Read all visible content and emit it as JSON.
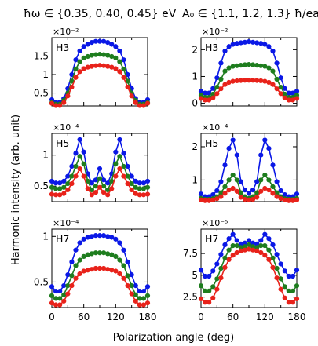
{
  "figure": {
    "column_titles": [
      "ħω ∈ {0.35, 0.40, 0.45} eV",
      "A₀ ∈ {1.1, 1.2, 1.3} ħ/ea"
    ],
    "xlabel": "Polarization angle (deg)",
    "ylabel": "Harmonic intensity (arb. unit)",
    "colors": {
      "blue": "#0a18e6",
      "green": "#1e7d1e",
      "red": "#e8221a"
    }
  },
  "chart_data": [
    {
      "type": "line",
      "panel": "H3",
      "column": 0,
      "row": 0,
      "scale_label": "×10⁻²",
      "x": [
        0,
        7.5,
        15,
        22.5,
        30,
        37.5,
        45,
        52.5,
        60,
        67.5,
        75,
        82.5,
        90,
        97.5,
        105,
        112.5,
        120,
        127.5,
        135,
        142.5,
        150,
        157.5,
        165,
        172.5,
        180
      ],
      "xlim": [
        0,
        180
      ],
      "xticks": [
        "0",
        "60",
        "120",
        "180"
      ],
      "ylim": [
        0.15,
        2.0
      ],
      "yticks": [
        0.5,
        1.0,
        1.5
      ],
      "ytick_labels": [
        "0.5",
        "1",
        "1.5"
      ],
      "series": [
        {
          "color": "#0a18e6",
          "values": [
            0.32,
            0.25,
            0.25,
            0.35,
            0.62,
            1.0,
            1.4,
            1.64,
            1.76,
            1.82,
            1.87,
            1.9,
            1.9,
            1.9,
            1.87,
            1.82,
            1.76,
            1.64,
            1.4,
            1.0,
            0.62,
            0.35,
            0.25,
            0.25,
            0.32
          ]
        },
        {
          "color": "#1e7d1e",
          "values": [
            0.24,
            0.2,
            0.2,
            0.3,
            0.5,
            0.82,
            1.15,
            1.35,
            1.45,
            1.49,
            1.52,
            1.54,
            1.55,
            1.54,
            1.52,
            1.49,
            1.45,
            1.35,
            1.15,
            0.82,
            0.5,
            0.3,
            0.2,
            0.2,
            0.24
          ]
        },
        {
          "color": "#e8221a",
          "values": [
            0.22,
            0.16,
            0.16,
            0.24,
            0.42,
            0.66,
            0.92,
            1.08,
            1.16,
            1.2,
            1.22,
            1.24,
            1.25,
            1.24,
            1.22,
            1.2,
            1.16,
            1.08,
            0.92,
            0.66,
            0.42,
            0.24,
            0.16,
            0.16,
            0.22
          ]
        }
      ]
    },
    {
      "type": "line",
      "panel": "H3",
      "column": 1,
      "row": 0,
      "scale_label": "×10⁻²",
      "x": [
        0,
        7.5,
        15,
        22.5,
        30,
        37.5,
        45,
        52.5,
        60,
        67.5,
        75,
        82.5,
        90,
        97.5,
        105,
        112.5,
        120,
        127.5,
        135,
        142.5,
        150,
        157.5,
        165,
        172.5,
        180
      ],
      "xlim": [
        0,
        180
      ],
      "xticks": [
        "0",
        "60",
        "120",
        "180"
      ],
      "ylim": [
        -0.1,
        2.45
      ],
      "yticks": [
        0,
        1,
        2
      ],
      "ytick_labels": [
        "0",
        "1",
        "2"
      ],
      "series": [
        {
          "color": "#0a18e6",
          "values": [
            0.45,
            0.38,
            0.38,
            0.55,
            0.95,
            1.5,
            1.95,
            2.12,
            2.2,
            2.24,
            2.26,
            2.28,
            2.3,
            2.28,
            2.26,
            2.24,
            2.2,
            2.12,
            1.95,
            1.5,
            0.95,
            0.55,
            0.38,
            0.38,
            0.45
          ]
        },
        {
          "color": "#1e7d1e",
          "values": [
            0.3,
            0.22,
            0.22,
            0.34,
            0.6,
            0.9,
            1.2,
            1.32,
            1.38,
            1.4,
            1.42,
            1.44,
            1.45,
            1.44,
            1.42,
            1.4,
            1.38,
            1.32,
            1.2,
            0.9,
            0.6,
            0.34,
            0.22,
            0.22,
            0.3
          ]
        },
        {
          "color": "#e8221a",
          "values": [
            0.18,
            0.12,
            0.12,
            0.2,
            0.36,
            0.54,
            0.7,
            0.78,
            0.82,
            0.84,
            0.85,
            0.86,
            0.86,
            0.86,
            0.85,
            0.84,
            0.82,
            0.78,
            0.7,
            0.54,
            0.36,
            0.2,
            0.12,
            0.12,
            0.18
          ]
        }
      ]
    },
    {
      "type": "line",
      "panel": "H5",
      "column": 0,
      "row": 1,
      "scale_label": "×10⁻⁴",
      "x": [
        0,
        7.5,
        15,
        22.5,
        30,
        37.5,
        45,
        52.5,
        60,
        67.5,
        75,
        82.5,
        90,
        97.5,
        105,
        112.5,
        120,
        127.5,
        135,
        142.5,
        150,
        157.5,
        165,
        172.5,
        180
      ],
      "xlim": [
        0,
        180
      ],
      "xticks": [
        "0",
        "60",
        "120",
        "180"
      ],
      "ylim": [
        0.25,
        1.35
      ],
      "yticks": [
        0.5,
        1.0
      ],
      "ytick_labels": [
        "0.5",
        "1"
      ],
      "series": [
        {
          "color": "#0a18e6",
          "values": [
            0.58,
            0.55,
            0.55,
            0.58,
            0.66,
            0.82,
            1.03,
            1.25,
            1.05,
            0.7,
            0.55,
            0.6,
            0.78,
            0.6,
            0.55,
            0.7,
            1.05,
            1.25,
            1.03,
            0.82,
            0.66,
            0.58,
            0.55,
            0.55,
            0.58
          ]
        },
        {
          "color": "#1e7d1e",
          "values": [
            0.48,
            0.46,
            0.46,
            0.48,
            0.54,
            0.66,
            0.82,
            0.98,
            0.86,
            0.58,
            0.44,
            0.5,
            0.62,
            0.5,
            0.44,
            0.58,
            0.86,
            0.98,
            0.82,
            0.66,
            0.54,
            0.48,
            0.46,
            0.46,
            0.48
          ]
        },
        {
          "color": "#e8221a",
          "values": [
            0.37,
            0.36,
            0.36,
            0.38,
            0.44,
            0.54,
            0.66,
            0.78,
            0.66,
            0.46,
            0.36,
            0.4,
            0.48,
            0.4,
            0.36,
            0.46,
            0.66,
            0.78,
            0.66,
            0.54,
            0.44,
            0.38,
            0.36,
            0.36,
            0.37
          ]
        }
      ]
    },
    {
      "type": "line",
      "panel": "H5",
      "column": 1,
      "row": 1,
      "scale_label": "×10⁻⁴",
      "x": [
        0,
        7.5,
        15,
        22.5,
        30,
        37.5,
        45,
        52.5,
        60,
        67.5,
        75,
        82.5,
        90,
        97.5,
        105,
        112.5,
        120,
        127.5,
        135,
        142.5,
        150,
        157.5,
        165,
        172.5,
        180
      ],
      "xlim": [
        0,
        180
      ],
      "xticks": [
        "0",
        "60",
        "120",
        "180"
      ],
      "ylim": [
        0.35,
        2.4
      ],
      "yticks": [
        1,
        2
      ],
      "ytick_labels": [
        "1",
        "2"
      ],
      "series": [
        {
          "color": "#0a18e6",
          "values": [
            0.58,
            0.5,
            0.5,
            0.56,
            0.68,
            0.95,
            1.45,
            1.95,
            2.2,
            1.75,
            0.95,
            0.7,
            0.6,
            0.7,
            0.95,
            1.75,
            2.2,
            1.95,
            1.45,
            0.95,
            0.68,
            0.56,
            0.5,
            0.5,
            0.58
          ]
        },
        {
          "color": "#1e7d1e",
          "values": [
            0.45,
            0.42,
            0.42,
            0.44,
            0.5,
            0.62,
            0.8,
            1.0,
            1.15,
            1.0,
            0.62,
            0.5,
            0.45,
            0.5,
            0.62,
            1.0,
            1.15,
            1.0,
            0.8,
            0.62,
            0.5,
            0.44,
            0.42,
            0.42,
            0.45
          ]
        },
        {
          "color": "#e8221a",
          "values": [
            0.4,
            0.38,
            0.38,
            0.4,
            0.44,
            0.5,
            0.6,
            0.7,
            0.75,
            0.66,
            0.48,
            0.42,
            0.4,
            0.42,
            0.48,
            0.66,
            0.75,
            0.7,
            0.6,
            0.5,
            0.44,
            0.4,
            0.38,
            0.38,
            0.4
          ]
        }
      ]
    },
    {
      "type": "line",
      "panel": "H7",
      "column": 0,
      "row": 2,
      "scale_label": "×10⁻⁴",
      "x": [
        0,
        7.5,
        15,
        22.5,
        30,
        37.5,
        45,
        52.5,
        60,
        67.5,
        75,
        82.5,
        90,
        97.5,
        105,
        112.5,
        120,
        127.5,
        135,
        142.5,
        150,
        157.5,
        165,
        172.5,
        180
      ],
      "xlim": [
        0,
        180
      ],
      "xticks": [
        "0",
        "60",
        "120",
        "180"
      ],
      "ylim": [
        0.22,
        1.08
      ],
      "yticks": [
        0.5,
        1.0
      ],
      "ytick_labels": [
        "0.5",
        "1"
      ],
      "series": [
        {
          "color": "#0a18e6",
          "values": [
            0.45,
            0.4,
            0.4,
            0.46,
            0.58,
            0.72,
            0.85,
            0.93,
            0.97,
            0.99,
            1.0,
            1.01,
            1.01,
            1.01,
            1.0,
            0.99,
            0.97,
            0.93,
            0.85,
            0.72,
            0.58,
            0.46,
            0.4,
            0.4,
            0.45
          ]
        },
        {
          "color": "#1e7d1e",
          "values": [
            0.35,
            0.32,
            0.32,
            0.36,
            0.46,
            0.57,
            0.68,
            0.74,
            0.78,
            0.8,
            0.81,
            0.82,
            0.82,
            0.82,
            0.81,
            0.8,
            0.78,
            0.74,
            0.68,
            0.57,
            0.46,
            0.36,
            0.32,
            0.32,
            0.35
          ]
        },
        {
          "color": "#e8221a",
          "values": [
            0.27,
            0.25,
            0.25,
            0.29,
            0.37,
            0.46,
            0.54,
            0.59,
            0.62,
            0.63,
            0.64,
            0.65,
            0.65,
            0.65,
            0.64,
            0.63,
            0.62,
            0.59,
            0.54,
            0.46,
            0.37,
            0.29,
            0.25,
            0.25,
            0.27
          ]
        }
      ]
    },
    {
      "type": "line",
      "panel": "H7",
      "column": 1,
      "row": 2,
      "scale_label": "×10⁻⁵",
      "x": [
        0,
        7.5,
        15,
        22.5,
        30,
        37.5,
        45,
        52.5,
        60,
        67.5,
        75,
        82.5,
        90,
        97.5,
        105,
        112.5,
        120,
        127.5,
        135,
        142.5,
        150,
        157.5,
        165,
        172.5,
        180
      ],
      "xlim": [
        0,
        180
      ],
      "xticks": [
        "0",
        "60",
        "120",
        "180"
      ],
      "ylim": [
        1.3,
        10.3
      ],
      "yticks": [
        2.5,
        5.0,
        7.5
      ],
      "ytick_labels": [
        "2.5",
        "5",
        "7.5"
      ],
      "series": [
        {
          "color": "#0a18e6",
          "values": [
            5.6,
            4.9,
            4.9,
            5.5,
            6.3,
            7.4,
            8.5,
            9.2,
            9.7,
            9.0,
            8.6,
            8.7,
            9.0,
            8.7,
            8.6,
            9.0,
            9.7,
            9.2,
            8.5,
            7.4,
            6.3,
            5.5,
            4.9,
            4.9,
            5.6
          ]
        },
        {
          "color": "#1e7d1e",
          "values": [
            3.8,
            3.2,
            3.2,
            3.7,
            4.6,
            5.8,
            7.0,
            7.9,
            8.4,
            8.4,
            8.2,
            8.3,
            8.5,
            8.3,
            8.2,
            8.4,
            8.4,
            7.9,
            7.0,
            5.8,
            4.6,
            3.7,
            3.2,
            3.2,
            3.8
          ]
        },
        {
          "color": "#e8221a",
          "values": [
            2.3,
            1.9,
            1.9,
            2.4,
            3.4,
            4.7,
            5.9,
            6.8,
            7.3,
            7.6,
            7.8,
            7.9,
            8.0,
            7.9,
            7.8,
            7.6,
            7.3,
            6.8,
            5.9,
            4.7,
            3.4,
            2.4,
            1.9,
            1.9,
            2.3
          ]
        }
      ]
    }
  ]
}
